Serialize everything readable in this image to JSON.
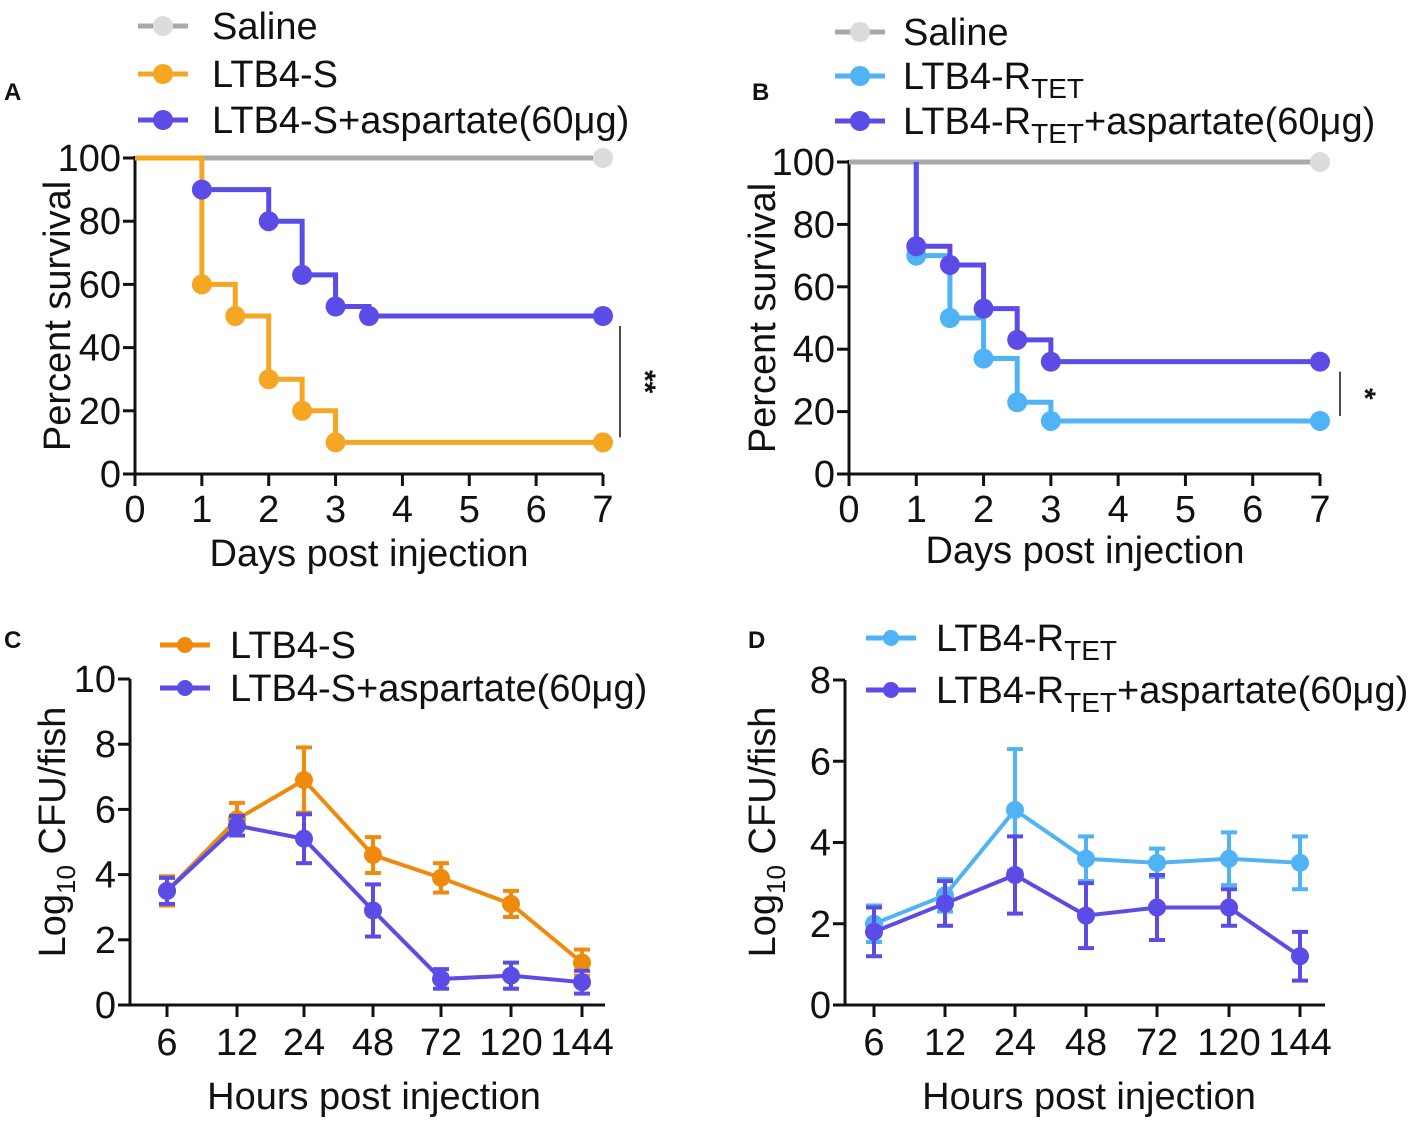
{
  "chart_data": [
    {
      "panel": "A",
      "type": "line",
      "subtype": "kaplan-meier-survival",
      "xlabel": "Days post injection",
      "ylabel": "Percent survival",
      "xlim": [
        0,
        7
      ],
      "ylim": [
        0,
        100
      ],
      "xticks": [
        "0",
        "1",
        "2",
        "3",
        "4",
        "5",
        "6",
        "7"
      ],
      "yticks": [
        "0",
        "20",
        "40",
        "60",
        "80",
        "100"
      ],
      "series": [
        {
          "name": "Saline",
          "color": "#A9A9A9",
          "marker_color": "#DCDCDC",
          "steps": [
            [
              0,
              100
            ],
            [
              7,
              100
            ]
          ],
          "markers": [
            [
              7,
              100
            ]
          ]
        },
        {
          "name": "LTB4-S",
          "color": "#F5A623",
          "marker_color": "#F5A623",
          "steps": [
            [
              0,
              100
            ],
            [
              1,
              100
            ],
            [
              1,
              60
            ],
            [
              1.5,
              60
            ],
            [
              1.5,
              50
            ],
            [
              2,
              50
            ],
            [
              2,
              30
            ],
            [
              2.5,
              30
            ],
            [
              2.5,
              20
            ],
            [
              3,
              20
            ],
            [
              3,
              10
            ],
            [
              7,
              10
            ]
          ],
          "markers": [
            [
              1,
              60
            ],
            [
              1.5,
              50
            ],
            [
              2,
              30
            ],
            [
              2.5,
              20
            ],
            [
              3,
              10
            ],
            [
              7,
              10
            ]
          ]
        },
        {
          "name": "LTB4-S+aspartate(60μg)",
          "color": "#5B4CE8",
          "marker_color": "#5B4CE8",
          "steps": [
            [
              1,
              90
            ],
            [
              2,
              90
            ],
            [
              2,
              80
            ],
            [
              2.5,
              80
            ],
            [
              2.5,
              63
            ],
            [
              3,
              63
            ],
            [
              3,
              53
            ],
            [
              3.5,
              53
            ],
            [
              3.5,
              50
            ],
            [
              7,
              50
            ]
          ],
          "markers": [
            [
              1,
              90
            ],
            [
              2,
              80
            ],
            [
              2.5,
              63
            ],
            [
              3,
              53
            ],
            [
              3.5,
              50
            ],
            [
              7,
              50
            ]
          ]
        }
      ],
      "significance": {
        "label": "**",
        "between": [
          10,
          50
        ]
      },
      "legend": [
        "Saline",
        "LTB4-S",
        "LTB4-S+aspartate(60μg)"
      ]
    },
    {
      "panel": "B",
      "type": "line",
      "subtype": "kaplan-meier-survival",
      "xlabel": "Days post injection",
      "ylabel": "Percent survival",
      "xlim": [
        0,
        7
      ],
      "ylim": [
        0,
        100
      ],
      "xticks": [
        "0",
        "1",
        "2",
        "3",
        "4",
        "5",
        "6",
        "7"
      ],
      "yticks": [
        "0",
        "20",
        "40",
        "60",
        "80",
        "100"
      ],
      "series": [
        {
          "name": "Saline",
          "color": "#A9A9A9",
          "marker_color": "#DCDCDC",
          "steps": [
            [
              0,
              100
            ],
            [
              7,
              100
            ]
          ],
          "markers": [
            [
              7,
              100
            ]
          ]
        },
        {
          "name": "LTB4-RTET",
          "color": "#4FB3F5",
          "marker_color": "#4FB3F5",
          "steps": [
            [
              1,
              100
            ],
            [
              1,
              70
            ],
            [
              1.5,
              70
            ],
            [
              1.5,
              50
            ],
            [
              2,
              50
            ],
            [
              2,
              37
            ],
            [
              2.5,
              37
            ],
            [
              2.5,
              23
            ],
            [
              3,
              23
            ],
            [
              3,
              17
            ],
            [
              7,
              17
            ]
          ],
          "markers": [
            [
              1,
              70
            ],
            [
              1.5,
              50
            ],
            [
              2,
              37
            ],
            [
              2.5,
              23
            ],
            [
              3,
              17
            ],
            [
              7,
              17
            ]
          ]
        },
        {
          "name": "LTB4-RTET+aspartate(60μg)",
          "color": "#5B4CE8",
          "marker_color": "#5B4CE8",
          "steps": [
            [
              1,
              100
            ],
            [
              1,
              73
            ],
            [
              1.5,
              73
            ],
            [
              1.5,
              67
            ],
            [
              2,
              67
            ],
            [
              2,
              53
            ],
            [
              2.5,
              53
            ],
            [
              2.5,
              43
            ],
            [
              3,
              43
            ],
            [
              3,
              36
            ],
            [
              7,
              36
            ]
          ],
          "markers": [
            [
              1,
              73
            ],
            [
              1.5,
              67
            ],
            [
              2,
              53
            ],
            [
              2.5,
              43
            ],
            [
              3,
              36
            ],
            [
              7,
              36
            ]
          ]
        }
      ],
      "significance": {
        "label": "*",
        "between": [
          17,
          36
        ]
      },
      "legend": [
        "Saline",
        "LTB4-RTET",
        "LTB4-RTET+aspartate(60μg)"
      ]
    },
    {
      "panel": "C",
      "type": "line",
      "subtype": "error-bar-line",
      "xlabel": "Hours post injection",
      "ylabel": "Log10 CFU/fish",
      "categories": [
        "6",
        "12",
        "24",
        "48",
        "72",
        "120",
        "144"
      ],
      "ylim": [
        0,
        10
      ],
      "yticks": [
        "0",
        "2",
        "4",
        "6",
        "8",
        "10"
      ],
      "series": [
        {
          "name": "LTB4-S",
          "color": "#F08A0C",
          "values": [
            3.5,
            5.7,
            6.9,
            4.6,
            3.9,
            3.1,
            1.3
          ],
          "errors": [
            0.45,
            0.5,
            1.0,
            0.55,
            0.45,
            0.4,
            0.4
          ]
        },
        {
          "name": "LTB4-S+aspartate(60μg)",
          "color": "#5B4CE8",
          "values": [
            3.5,
            5.5,
            5.1,
            2.9,
            0.8,
            0.9,
            0.7
          ],
          "errors": [
            0.4,
            0.3,
            0.75,
            0.8,
            0.3,
            0.4,
            0.35
          ]
        }
      ],
      "legend": [
        "LTB4-S",
        "LTB4-S+aspartate(60μg)"
      ]
    },
    {
      "panel": "D",
      "type": "line",
      "subtype": "error-bar-line",
      "xlabel": "Hours post injection",
      "ylabel": "Log10 CFU/fish",
      "categories": [
        "6",
        "12",
        "24",
        "48",
        "72",
        "120",
        "144"
      ],
      "ylim": [
        0,
        8
      ],
      "yticks": [
        "0",
        "2",
        "4",
        "6",
        "8"
      ],
      "series": [
        {
          "name": "LTB4-RTET",
          "color": "#4FB3F5",
          "values": [
            2.0,
            2.7,
            4.8,
            3.6,
            3.5,
            3.6,
            3.5
          ],
          "errors": [
            0.45,
            0.4,
            1.5,
            0.55,
            0.35,
            0.65,
            0.65
          ]
        },
        {
          "name": "LTB4-RTET+aspartate(60μg)",
          "color": "#5B4CE8",
          "values": [
            1.8,
            2.5,
            3.2,
            2.2,
            2.4,
            2.4,
            1.2
          ],
          "errors": [
            0.6,
            0.55,
            0.95,
            0.8,
            0.8,
            0.45,
            0.6
          ]
        }
      ],
      "legend": [
        "LTB4-RTET",
        "LTB4-RTET+aspartate(60μg)"
      ]
    }
  ],
  "labels": {
    "A": "A",
    "B": "B",
    "C": "C",
    "D": "D",
    "ltb4s": "LTB4-S",
    "ltb4r_prefix": "LTB4-R",
    "tet": "TET",
    "asp_suffix": "+aspartate(60μg)",
    "saline": "Saline",
    "log": "Log",
    "sub10": "10",
    "cfu": " CFU/fish"
  }
}
